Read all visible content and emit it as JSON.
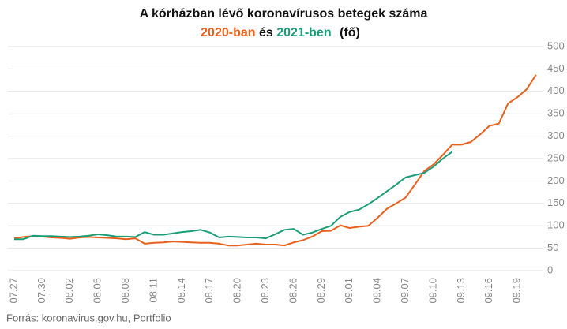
{
  "chart_data": {
    "type": "line",
    "title": "A kórházban lévő koronavírusos betegek száma",
    "subtitle_and": "és",
    "subtitle_unit": "(fő)",
    "source": "Forrás: koronavirus.gov.hu, Portfolio",
    "categories": [
      "07.27",
      null,
      null,
      "07.30",
      null,
      null,
      "08.02",
      null,
      null,
      "08.05",
      null,
      null,
      "08.08",
      null,
      null,
      "08.11",
      null,
      null,
      "08.14",
      null,
      null,
      "08.17",
      null,
      null,
      "08.20",
      null,
      null,
      "08.23",
      null,
      null,
      "08.26",
      null,
      null,
      "08.29",
      null,
      null,
      "09.01",
      null,
      null,
      "09.04",
      null,
      null,
      "09.07",
      null,
      null,
      "09.10",
      null,
      null,
      "09.13",
      null,
      null,
      "09.16",
      null,
      null,
      "09.19",
      null,
      null
    ],
    "series": [
      {
        "name": "2020-ban",
        "color": "#e8601c",
        "values": [
          72,
          75,
          77,
          76,
          74,
          73,
          71,
          74,
          75,
          74,
          73,
          72,
          70,
          72,
          60,
          62,
          63,
          65,
          64,
          63,
          62,
          62,
          60,
          56,
          56,
          58,
          60,
          58,
          58,
          56,
          63,
          68,
          76,
          88,
          89,
          101,
          95,
          98,
          100,
          118,
          138,
          150,
          163,
          192,
          222,
          237,
          258,
          281,
          281,
          287,
          304,
          323,
          328,
          373,
          387,
          405,
          437
        ]
      },
      {
        "name": "2021-ben",
        "color": "#1a9e77",
        "values": [
          70,
          70,
          78,
          77,
          77,
          76,
          75,
          76,
          78,
          81,
          79,
          76,
          76,
          75,
          86,
          80,
          80,
          83,
          86,
          88,
          91,
          85,
          74,
          76,
          75,
          74,
          74,
          72,
          81,
          91,
          93,
          80,
          85,
          93,
          100,
          120,
          131,
          136,
          148,
          162,
          177,
          192,
          208,
          213,
          218,
          232,
          250,
          265,
          null,
          null,
          null,
          null,
          null,
          null,
          null,
          null,
          null
        ]
      }
    ],
    "ylim": [
      0,
      500
    ],
    "yticks": [
      0,
      50,
      100,
      150,
      200,
      250,
      300,
      350,
      400,
      450,
      500
    ],
    "grid": true
  }
}
